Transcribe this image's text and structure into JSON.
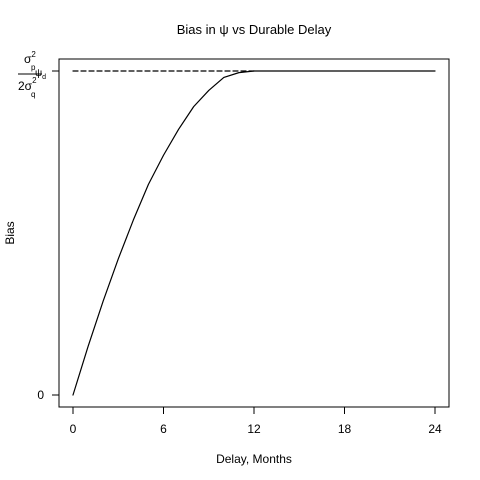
{
  "chart_data": {
    "type": "line",
    "title": "Bias in ψ vs Durable Delay",
    "xlabel": "Delay, Months",
    "ylabel": "Bias",
    "xlim": [
      0,
      24
    ],
    "ylim": [
      0,
      1
    ],
    "xticks": [
      0,
      6,
      12,
      18,
      24
    ],
    "xtick_labels": [
      "0",
      "6",
      "12",
      "18",
      "24"
    ],
    "yticks": [
      0,
      1
    ],
    "ytick_labels": [
      "0",
      "asymptote"
    ],
    "asymptote_label": {
      "numerator": "σ",
      "numerator_sup": "2",
      "numerator_sub": "p",
      "denominator": "2σ",
      "denominator_sup": "2",
      "denominator_sub": "q",
      "suffix": "ψ",
      "suffix_sub": "d"
    },
    "series": [
      {
        "style": "solid",
        "x": [
          0,
          1,
          2,
          3,
          4,
          5,
          6,
          7,
          8,
          9,
          10,
          11,
          12,
          13,
          14,
          15,
          16,
          17,
          18,
          19,
          20,
          21,
          22,
          23,
          24
        ],
        "y": [
          0,
          0.15,
          0.29,
          0.42,
          0.54,
          0.65,
          0.74,
          0.82,
          0.89,
          0.94,
          0.98,
          0.995,
          1,
          1,
          1,
          1,
          1,
          1,
          1,
          1,
          1,
          1,
          1,
          1,
          1
        ]
      },
      {
        "style": "dashed",
        "x": [
          0,
          12
        ],
        "y": [
          1,
          1
        ]
      }
    ],
    "grid": false,
    "legend": false
  }
}
